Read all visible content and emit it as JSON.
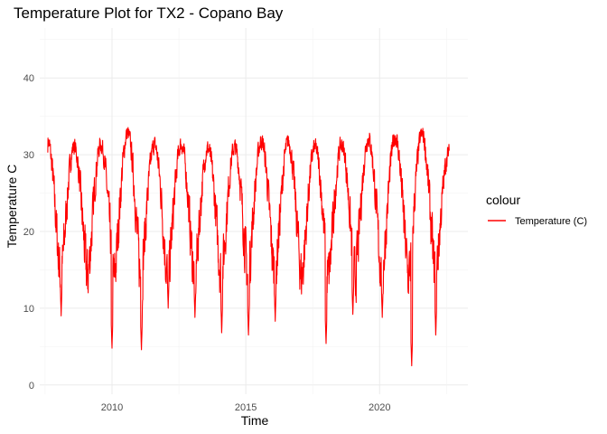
{
  "chart_data": {
    "type": "line",
    "title": "Temperature Plot for TX2 - Copano Bay",
    "xlabel": "Time",
    "ylabel": "Temperature C",
    "xlim": [
      2007.3,
      2023.3
    ],
    "ylim": [
      -1.2,
      46.5
    ],
    "x_ticks": [
      2010,
      2015,
      2020
    ],
    "x_tick_labels": [
      "2010",
      "2015",
      "2020"
    ],
    "y_ticks": [
      0,
      10,
      20,
      30,
      40
    ],
    "y_tick_labels": [
      "0",
      "10",
      "20",
      "30",
      "40"
    ],
    "grid": true,
    "legend": {
      "title": "colour",
      "position": "right"
    },
    "series": [
      {
        "name": "Temperature (C)",
        "color": "#ff0000",
        "x_start": 2007.6,
        "x_end": 2022.6,
        "annual_peaks": [
          33.2,
          32.3,
          32.5,
          34.0,
          32.5,
          32.5,
          32.0,
          32.2,
          33.0,
          32.8,
          32.2,
          32.5,
          33.3,
          33.5,
          33.9,
          31.4
        ],
        "annual_troughs": [
          9.0,
          4.8,
          4.6,
          10.0,
          8.8,
          6.8,
          6.5,
          8.3,
          5.4,
          9.2,
          8.8,
          2.5,
          6.5
        ],
        "trough_years": [
          2008.1,
          2010.0,
          2011.1,
          2012.1,
          2013.1,
          2014.1,
          2015.1,
          2016.1,
          2018.0,
          2019.0,
          2020.1,
          2021.2,
          2022.1
        ]
      }
    ]
  }
}
